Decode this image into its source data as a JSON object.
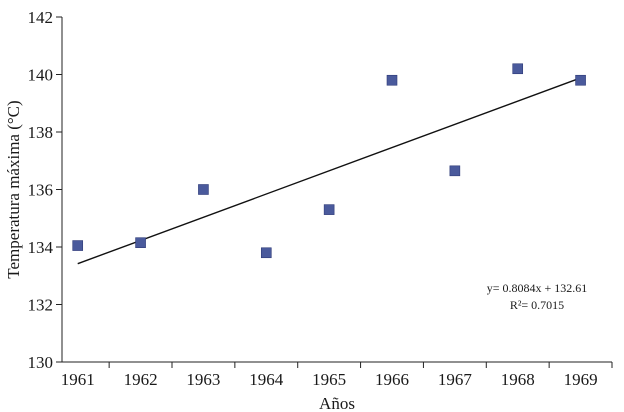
{
  "chart_data": {
    "type": "scatter",
    "title": "",
    "xlabel": "Años",
    "ylabel": "Temperatura máxima (°C)",
    "x": [
      1961,
      1962,
      1963,
      1964,
      1965,
      1966,
      1967,
      1968,
      1969
    ],
    "y": [
      134.05,
      134.15,
      136.0,
      133.8,
      135.3,
      139.8,
      136.65,
      140.2,
      139.8
    ],
    "xlim": [
      1960.75,
      1969.5
    ],
    "ylim": [
      130,
      142
    ],
    "x_ticks": [
      "1961",
      "1962",
      "1963",
      "1964",
      "1965",
      "1966",
      "1967",
      "1968",
      "1969"
    ],
    "y_ticks": [
      "130",
      "132",
      "134",
      "136",
      "138",
      "140",
      "142"
    ],
    "trendline": {
      "type": "linear",
      "slope": 0.8084,
      "intercept": 132.61,
      "x_range": [
        1961,
        1969
      ],
      "y_range": [
        133.42,
        139.88
      ]
    },
    "annotations": [
      "y= 0.8084x + 132.61",
      "R²= 0.7015"
    ],
    "grid": false,
    "legend": "none",
    "marker": "square",
    "colors": {
      "marker": "#4a5a9c",
      "marker_edge": "#2f3b78",
      "trendline": "#111111",
      "axis": "#222222"
    }
  }
}
